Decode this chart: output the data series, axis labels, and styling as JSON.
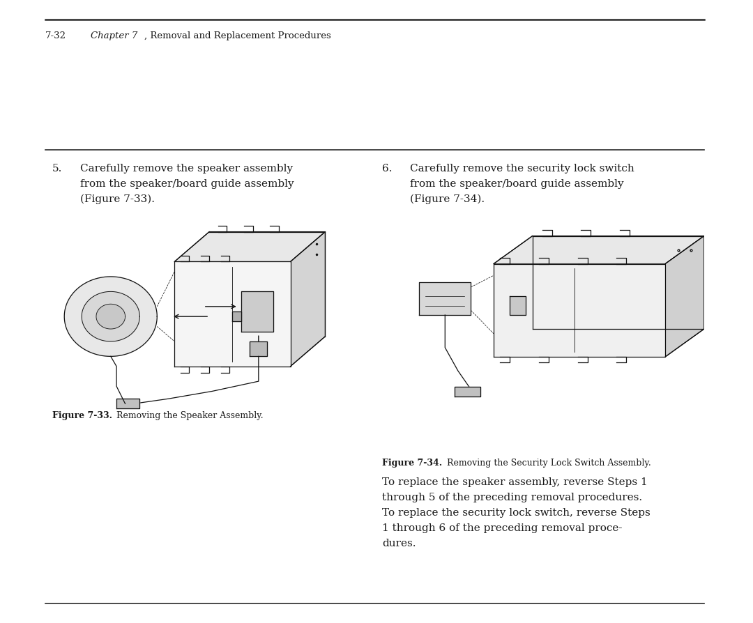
{
  "bg_color": "#ffffff",
  "page_width": 10.8,
  "page_height": 8.94,
  "text_color": "#1a1a1a",
  "rule_color": "#2a2a2a",
  "header_text": "7-32",
  "header_italic": "Chapter 7",
  "header_normal": ", Removal and Replacement Procedures",
  "step5_num": "5.",
  "step5_text_lines": [
    "Carefully remove the speaker assembly",
    "from the speaker/board guide assembly",
    "(Figure 7-33)."
  ],
  "step6_num": "6.",
  "step6_text_lines": [
    "Carefully remove the security lock switch",
    "from the speaker/board guide assembly",
    "(Figure 7-34)."
  ],
  "fig33_caption_bold": "Figure 7-33.",
  "fig33_caption_normal": " Removing the Speaker Assembly.",
  "fig34_caption_bold": "Figure 7-34.",
  "fig34_caption_normal": " Removing the Security Lock Switch Assembly.",
  "body_text_lines": [
    "To replace the speaker assembly, reverse Steps 1",
    "through 5 of the preceding removal procedures.",
    "To replace the security lock switch, reverse Steps",
    "1 through 6 of the preceding removal proce-",
    "dures."
  ],
  "font_size_header": 9.5,
  "font_size_body": 11.0,
  "font_size_caption": 9.0
}
